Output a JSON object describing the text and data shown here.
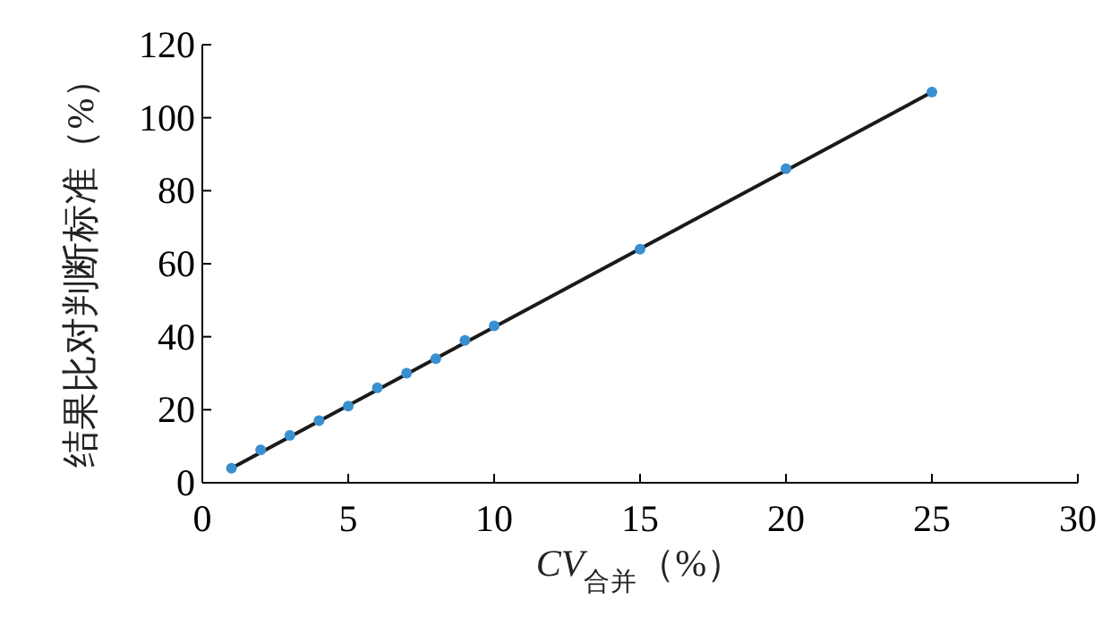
{
  "chart_data": {
    "type": "scatter",
    "xlabel": "*CV*$_{合并}$（%）",
    "ylabel": "结果比对判断标准（%）",
    "xlim": [
      0,
      30
    ],
    "xticks": [
      0,
      5,
      10,
      15,
      20,
      25,
      30
    ],
    "ylim": [
      0,
      120
    ],
    "yticks": [
      0,
      20,
      40,
      60,
      80,
      100,
      120
    ],
    "grid": false,
    "series": [
      {
        "type": "line",
        "color": "#1a1a1a",
        "x": [
          1,
          25
        ],
        "values": [
          4,
          107
        ]
      },
      {
        "marker": "circle",
        "color": "#3a8fd0",
        "x": [
          1,
          2,
          3,
          4,
          5,
          6,
          7,
          8,
          9,
          10,
          15,
          20,
          25
        ],
        "values": [
          4,
          9,
          13,
          17,
          21,
          26,
          30,
          34,
          39,
          43,
          64,
          86,
          107
        ]
      }
    ]
  }
}
